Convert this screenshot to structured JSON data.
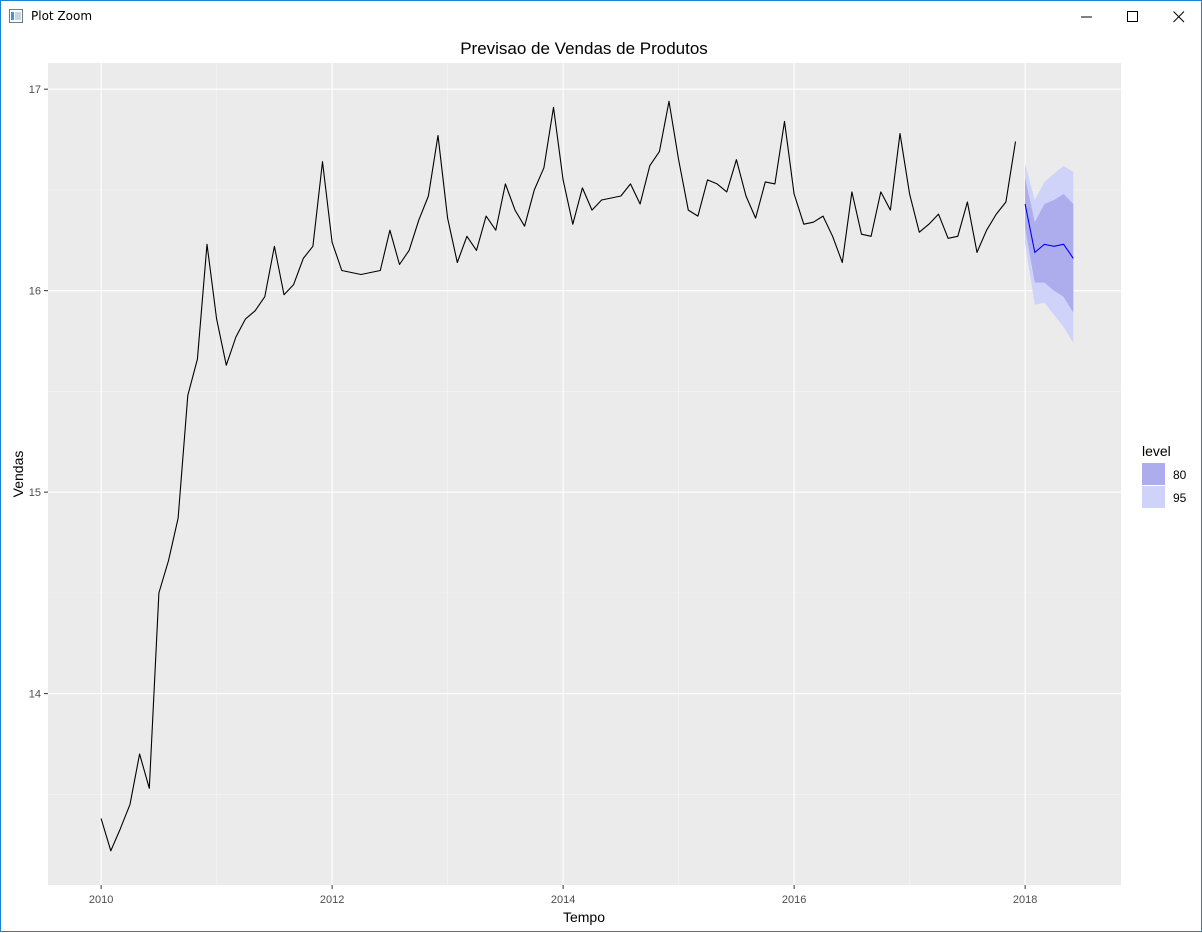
{
  "window": {
    "title": "Plot Zoom",
    "icons": [
      "app-icon",
      "minimize-icon",
      "maximize-icon",
      "close-icon"
    ]
  },
  "colors": {
    "panel": "#EBEBEB",
    "grid_major": "#FFFFFF",
    "grid_minor": "#F5F5F5",
    "series_line": "#000000",
    "forecast_line": "#0000FF",
    "band_80": "#ADADEE",
    "band_95": "#D0D3F9"
  },
  "chart_data": {
    "type": "line",
    "title": "Previsao de Vendas de Produtos",
    "xlabel": "Tempo",
    "ylabel": "Vendas",
    "xlim": [
      2009.54,
      2018.83
    ],
    "ylim": [
      13.05,
      17.13
    ],
    "x_ticks": [
      2010,
      2012,
      2014,
      2016,
      2018
    ],
    "x_tick_labels": [
      "2010",
      "2012",
      "2014",
      "2016",
      "2018"
    ],
    "y_ticks": [
      14,
      15,
      16,
      17
    ],
    "y_tick_labels": [
      "14",
      "15",
      "16",
      "17"
    ],
    "grid": true,
    "legend": {
      "title": "level",
      "placement": "right",
      "entries": [
        {
          "label": "80",
          "color": "#ADADEE"
        },
        {
          "label": "95",
          "color": "#D0D3F9"
        }
      ]
    },
    "series": [
      {
        "start": 2010,
        "frequency": 12,
        "values": [
          13.38,
          13.22,
          13.33,
          13.45,
          13.7,
          13.53,
          14.5,
          14.66,
          14.87,
          15.48,
          15.66,
          16.23,
          15.86,
          15.63,
          15.77,
          15.86,
          15.9,
          15.97,
          16.22,
          15.98,
          16.03,
          16.16,
          16.22,
          16.64,
          16.24,
          16.1,
          16.09,
          16.08,
          16.09,
          16.1,
          16.3,
          16.13,
          16.2,
          16.35,
          16.47,
          16.77,
          16.36,
          16.14,
          16.27,
          16.2,
          16.37,
          16.3,
          16.53,
          16.4,
          16.32,
          16.5,
          16.61,
          16.91,
          16.55,
          16.33,
          16.51,
          16.4,
          16.45,
          16.46,
          16.47,
          16.53,
          16.43,
          16.62,
          16.69,
          16.94,
          16.65,
          16.4,
          16.37,
          16.55,
          16.53,
          16.49,
          16.65,
          16.47,
          16.36,
          16.54,
          16.53,
          16.84,
          16.48,
          16.33,
          16.34,
          16.37,
          16.27,
          16.14,
          16.49,
          16.28,
          16.27,
          16.49,
          16.4,
          16.78,
          16.48,
          16.29,
          16.33,
          16.38,
          16.26,
          16.27,
          16.44,
          16.19,
          16.3,
          16.38,
          16.44,
          16.74
        ]
      }
    ],
    "forecast": {
      "start": 2018,
      "frequency": 12,
      "mean": [
        16.43,
        16.19,
        16.23,
        16.22,
        16.23,
        16.16
      ],
      "lo80": [
        16.31,
        16.04,
        16.04,
        16.0,
        15.97,
        15.89
      ],
      "hi80": [
        16.56,
        16.34,
        16.43,
        16.45,
        16.48,
        16.43
      ],
      "lo95": [
        16.23,
        15.93,
        15.94,
        15.88,
        15.82,
        15.74
      ],
      "hi95": [
        16.63,
        16.45,
        16.54,
        16.58,
        16.62,
        16.59
      ]
    }
  }
}
